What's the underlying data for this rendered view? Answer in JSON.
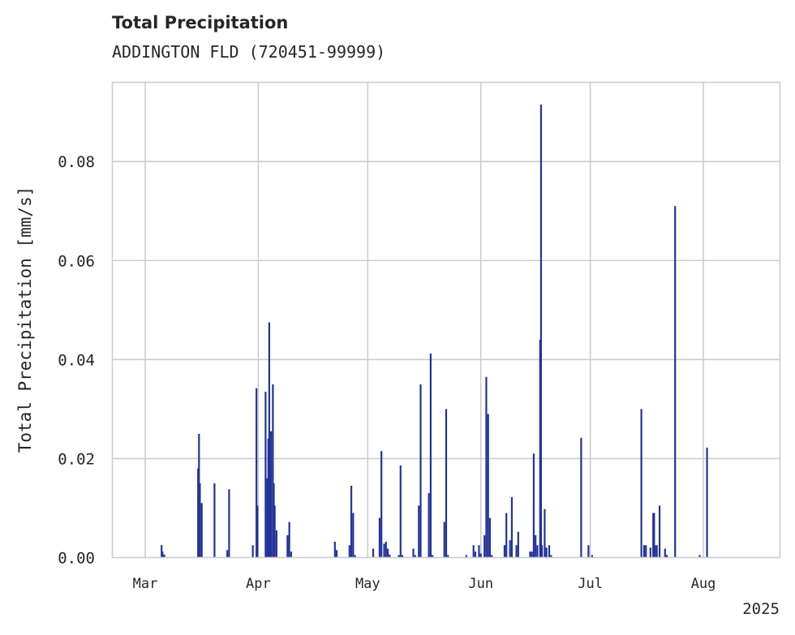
{
  "chart_data": {
    "type": "bar",
    "title": "Total Precipitation",
    "subtitle": "ADDINGTON FLD (720451-99999)",
    "xlabel": "",
    "ylabel": "Total Precipitation [mm/s]",
    "x_axis": {
      "type": "date",
      "range": [
        "2025-02-20",
        "2025-08-22"
      ],
      "ticks": [
        {
          "date": "2025-03-01",
          "label": "Mar"
        },
        {
          "date": "2025-04-01",
          "label": "Apr"
        },
        {
          "date": "2025-05-01",
          "label": "May"
        },
        {
          "date": "2025-06-01",
          "label": "Jun"
        },
        {
          "date": "2025-07-01",
          "label": "Jul"
        },
        {
          "date": "2025-08-01",
          "label": "Aug"
        }
      ],
      "year_label": "2025"
    },
    "y_axis": {
      "ylim": [
        0,
        0.096
      ],
      "ticks": [
        "0.00",
        "0.02",
        "0.04",
        "0.06",
        "0.08"
      ]
    },
    "grid": true,
    "color": "#22349a",
    "points": [
      [
        "2025-03-05T12:00",
        0.0025
      ],
      [
        "2025-03-05T18:00",
        0.0012
      ],
      [
        "2025-03-06T06:00",
        0.0006
      ],
      [
        "2025-03-15T12:00",
        0.018
      ],
      [
        "2025-03-15T18:00",
        0.025
      ],
      [
        "2025-03-16T00:00",
        0.015
      ],
      [
        "2025-03-16T12:00",
        0.011
      ],
      [
        "2025-03-20T00:00",
        0.015
      ],
      [
        "2025-03-23T12:00",
        0.0015
      ],
      [
        "2025-03-24T00:00",
        0.0138
      ],
      [
        "2025-03-30T12:00",
        0.0025
      ],
      [
        "2025-03-31T12:00",
        0.0342
      ],
      [
        "2025-03-31T18:00",
        0.0105
      ],
      [
        "2025-04-03T00:00",
        0.0335
      ],
      [
        "2025-04-03T12:00",
        0.016
      ],
      [
        "2025-04-03T18:00",
        0.024
      ],
      [
        "2025-04-04T00:00",
        0.0475
      ],
      [
        "2025-04-04T06:00",
        0.018
      ],
      [
        "2025-04-04T12:00",
        0.0255
      ],
      [
        "2025-04-05T00:00",
        0.035
      ],
      [
        "2025-04-05T06:00",
        0.015
      ],
      [
        "2025-04-05T12:00",
        0.0105
      ],
      [
        "2025-04-06T00:00",
        0.0055
      ],
      [
        "2025-04-09T00:00",
        0.0045
      ],
      [
        "2025-04-09T12:00",
        0.0072
      ],
      [
        "2025-04-10T00:00",
        0.0012
      ],
      [
        "2025-04-22T00:00",
        0.0032
      ],
      [
        "2025-04-22T12:00",
        0.0015
      ],
      [
        "2025-04-26T00:00",
        0.0025
      ],
      [
        "2025-04-26T12:00",
        0.0145
      ],
      [
        "2025-04-27T00:00",
        0.009
      ],
      [
        "2025-04-27T12:00",
        0.0005
      ],
      [
        "2025-05-02T12:00",
        0.0018
      ],
      [
        "2025-05-04T06:00",
        0.008
      ],
      [
        "2025-05-04T18:00",
        0.0215
      ],
      [
        "2025-05-05T12:00",
        0.0028
      ],
      [
        "2025-05-06T00:00",
        0.0032
      ],
      [
        "2025-05-06T12:00",
        0.0018
      ],
      [
        "2025-05-07T00:00",
        0.0006
      ],
      [
        "2025-05-09T12:00",
        0.0005
      ],
      [
        "2025-05-10T00:00",
        0.0186
      ],
      [
        "2025-05-10T12:00",
        0.0005
      ],
      [
        "2025-05-13T12:00",
        0.0018
      ],
      [
        "2025-05-14T00:00",
        0.0005
      ],
      [
        "2025-05-15T00:00",
        0.0105
      ],
      [
        "2025-05-15T12:00",
        0.035
      ],
      [
        "2025-05-17T18:00",
        0.013
      ],
      [
        "2025-05-18T06:00",
        0.0412
      ],
      [
        "2025-05-18T18:00",
        0.0005
      ],
      [
        "2025-05-22T00:00",
        0.0072
      ],
      [
        "2025-05-22T12:00",
        0.03
      ],
      [
        "2025-05-23T00:00",
        0.0005
      ],
      [
        "2025-05-28T00:00",
        0.0005
      ],
      [
        "2025-05-30T00:00",
        0.0025
      ],
      [
        "2025-05-30T12:00",
        0.0012
      ],
      [
        "2025-05-31T12:00",
        0.0025
      ],
      [
        "2025-06-01T00:00",
        0.0008
      ],
      [
        "2025-06-02T00:00",
        0.0045
      ],
      [
        "2025-06-02T12:00",
        0.0365
      ],
      [
        "2025-06-03T00:00",
        0.029
      ],
      [
        "2025-06-03T12:00",
        0.008
      ],
      [
        "2025-06-04T00:00",
        0.0005
      ],
      [
        "2025-06-07T12:00",
        0.0025
      ],
      [
        "2025-06-08T00:00",
        0.009
      ],
      [
        "2025-06-09T00:00",
        0.0035
      ],
      [
        "2025-06-09T12:00",
        0.0122
      ],
      [
        "2025-06-10T18:00",
        0.0025
      ],
      [
        "2025-06-11T06:00",
        0.0052
      ],
      [
        "2025-06-14T12:00",
        0.0012
      ],
      [
        "2025-06-15T00:00",
        0.0012
      ],
      [
        "2025-06-15T12:00",
        0.021
      ],
      [
        "2025-06-16T00:00",
        0.0045
      ],
      [
        "2025-06-16T12:00",
        0.0025
      ],
      [
        "2025-06-17T06:00",
        0.044
      ],
      [
        "2025-06-17T12:00",
        0.0915
      ],
      [
        "2025-06-17T18:00",
        0.0025
      ],
      [
        "2025-06-18T12:00",
        0.0098
      ],
      [
        "2025-06-19T00:00",
        0.002
      ],
      [
        "2025-06-19T18:00",
        0.0025
      ],
      [
        "2025-06-20T06:00",
        0.0005
      ],
      [
        "2025-06-28T12:00",
        0.0242
      ],
      [
        "2025-06-30T12:00",
        0.0025
      ],
      [
        "2025-07-01T12:00",
        0.0005
      ],
      [
        "2025-07-15T00:00",
        0.03
      ],
      [
        "2025-07-15T18:00",
        0.0025
      ],
      [
        "2025-07-16T06:00",
        0.0025
      ],
      [
        "2025-07-17T12:00",
        0.002
      ],
      [
        "2025-07-18T06:00",
        0.009
      ],
      [
        "2025-07-18T12:00",
        0.009
      ],
      [
        "2025-07-18T18:00",
        0.0025
      ],
      [
        "2025-07-19T06:00",
        0.0025
      ],
      [
        "2025-07-20T00:00",
        0.0105
      ],
      [
        "2025-07-21T12:00",
        0.0018
      ],
      [
        "2025-07-22T00:00",
        0.0005
      ],
      [
        "2025-07-24T06:00",
        0.071
      ],
      [
        "2025-07-31T00:00",
        0.0005
      ],
      [
        "2025-08-02T00:00",
        0.0222
      ]
    ]
  }
}
